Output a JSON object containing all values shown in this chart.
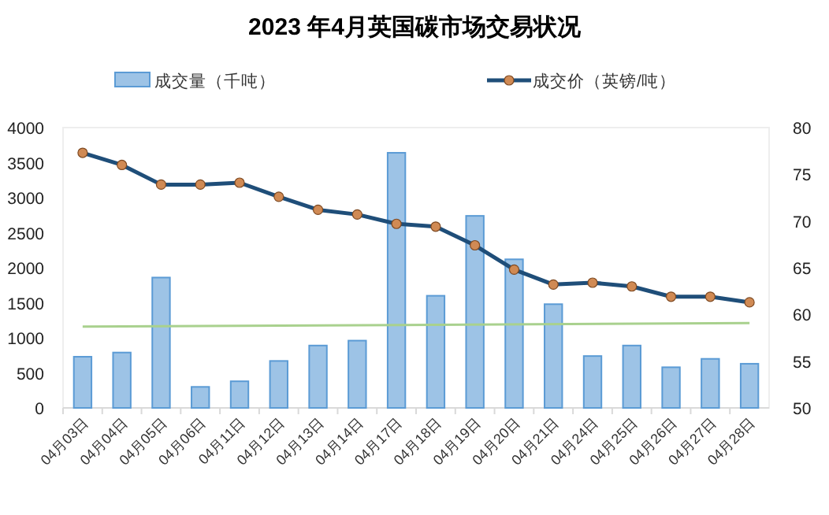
{
  "chart_data": {
    "type": "bar",
    "title": "2023 年4月英国碳市场交易状况",
    "categories": [
      "04月03日",
      "04月04日",
      "04月05日",
      "04月06日",
      "04月11日",
      "04月12日",
      "04月13日",
      "04月14日",
      "04月17日",
      "04月18日",
      "04月19日",
      "04月20日",
      "04月21日",
      "04月24日",
      "04月25日",
      "04月26日",
      "04月27日",
      "04月28日"
    ],
    "series": [
      {
        "name": "成交量（千吨）",
        "color": "#9dc3e6",
        "values": [
          730,
          790,
          1860,
          300,
          380,
          670,
          890,
          960,
          3640,
          1600,
          2740,
          2120,
          1480,
          740,
          890,
          580,
          700,
          630
        ]
      },
      {
        "name": "成交价（英镑/吨）",
        "type": "line",
        "axis": "y2",
        "color": "#1f4e79",
        "marker": "circle",
        "values": [
          77.3,
          76.0,
          73.9,
          73.9,
          74.1,
          72.6,
          71.2,
          70.7,
          69.7,
          69.4,
          67.4,
          64.8,
          63.2,
          63.4,
          63.0,
          61.9,
          61.9,
          61.3
        ]
      },
      {
        "type": "line",
        "color": "#a9d18e",
        "x": [
          "04月03日",
          "04月28日"
        ],
        "values": [
          1160,
          1210
        ]
      }
    ],
    "ylim": [
      0,
      4000
    ],
    "yticks": [
      0,
      500,
      1000,
      1500,
      2000,
      2500,
      3000,
      3500,
      4000
    ],
    "y2lim": [
      50,
      80
    ],
    "y2ticks": [
      50,
      55,
      60,
      65,
      70,
      75,
      80
    ],
    "legend": "top",
    "grid": false
  }
}
